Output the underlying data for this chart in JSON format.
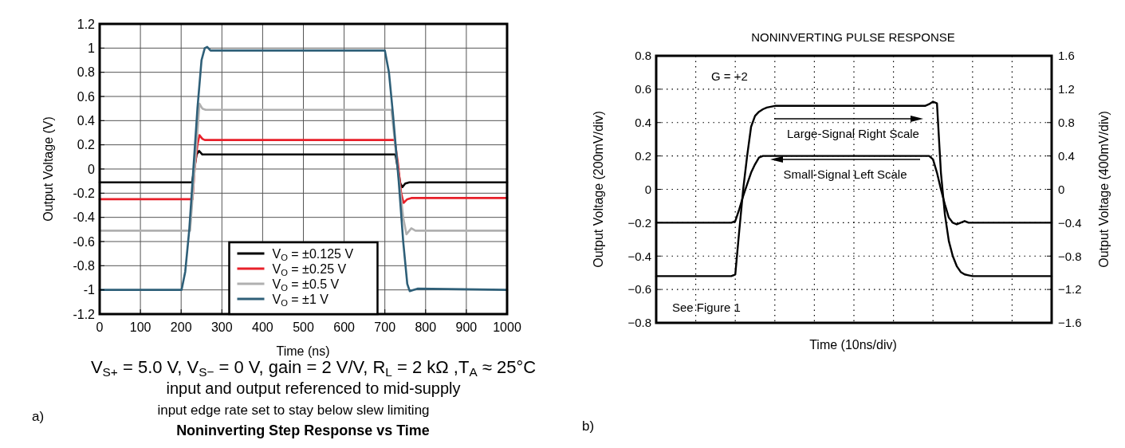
{
  "chart_data": [
    {
      "type": "line",
      "title": "Noninverting Step Response vs Time",
      "xlabel": "Time (ns)",
      "ylabel": "Output Voltage (V)",
      "annotations": [
        "V$_{S+}$ = 5.0 V, V$_{S−}$ = 0 V, gain = 2 V/V, R$_{L}$ = 2 kΩ ,T$_{A}$ ≈ 25°C",
        "input and output referenced to mid-supply",
        "input edge rate set to stay below slew limiting",
        "a)"
      ],
      "xlim": [
        0,
        1000
      ],
      "xticks": [
        0,
        100,
        200,
        300,
        400,
        500,
        600,
        700,
        800,
        900,
        1000
      ],
      "ylim": [
        -1.2,
        1.2
      ],
      "yticks": [
        -1.2,
        -1,
        -0.8,
        -0.6,
        -0.4,
        -0.2,
        0,
        0.2,
        0.4,
        0.6,
        0.8,
        1,
        1.2
      ],
      "grid": true,
      "legend": "bottom",
      "series": [
        {
          "name": "V$_{O}$ = ±0.125 V",
          "color": "#000000",
          "x": [
            0,
            227,
            232,
            238,
            244,
            252,
            258,
            726,
            732,
            738,
            743,
            750,
            760,
            1000
          ],
          "values": [
            -0.11,
            -0.11,
            0.0,
            0.12,
            0.15,
            0.12,
            0.12,
            0.12,
            0.0,
            -0.12,
            -0.15,
            -0.12,
            -0.11,
            -0.11
          ]
        },
        {
          "name": "V$_{O}$ = ±0.25 V",
          "color": "#e8202a",
          "x": [
            0,
            228,
            233,
            240,
            245,
            252,
            258,
            724,
            732,
            740,
            746,
            755,
            765,
            1000
          ],
          "values": [
            -0.25,
            -0.25,
            0.0,
            0.2,
            0.28,
            0.25,
            0.24,
            0.24,
            0.05,
            -0.2,
            -0.28,
            -0.25,
            -0.24,
            -0.24
          ]
        },
        {
          "name": "V$_{O}$ = ±0.5 V",
          "color": "#b0b0b0",
          "x": [
            0,
            222,
            245,
            252,
            260,
            716,
            745,
            753,
            765,
            775,
            1000
          ],
          "values": [
            -0.51,
            -0.51,
            0.54,
            0.5,
            0.49,
            0.49,
            -0.4,
            -0.54,
            -0.49,
            -0.51,
            -0.51
          ]
        },
        {
          "name": "V$_{O}$ = ±1 V",
          "color": "#2e5f78",
          "x": [
            0,
            201,
            210,
            220,
            228,
            240,
            250,
            258,
            264,
            272,
            700,
            710,
            720,
            734,
            745,
            755,
            761,
            770,
            780,
            1000
          ],
          "values": [
            -1,
            -1,
            -0.85,
            -0.5,
            -0.1,
            0.5,
            0.9,
            1.0,
            1.01,
            0.98,
            0.98,
            0.8,
            0.45,
            -0.1,
            -0.6,
            -0.95,
            -1.01,
            -1.0,
            -0.99,
            -1
          ]
        }
      ]
    },
    {
      "type": "line",
      "title": "NONINVERTING PULSE RESPONSE",
      "xlabel": "Time (10ns/div)",
      "ylabel": "Output Voltage (200mV/div)",
      "y2label": "Output Voltage (400mV/div)",
      "annotations": [
        "G = +2",
        "See Figure 1",
        "b)"
      ],
      "categories": [
        null,
        null,
        null,
        null,
        null,
        null,
        null,
        null,
        null,
        null,
        null,
        null,
        null,
        null,
        null,
        null,
        null,
        null,
        null,
        null,
        null,
        null,
        null,
        null,
        null,
        null,
        null,
        null,
        null,
        null,
        null,
        null,
        null,
        null,
        null,
        null,
        null,
        null,
        null,
        null,
        null,
        null,
        null,
        null,
        null,
        null,
        null,
        null,
        null,
        null,
        null,
        null,
        null,
        null,
        null,
        null,
        null,
        null,
        null,
        null,
        null,
        null,
        null,
        null,
        null,
        null,
        null,
        null,
        null,
        null,
        null,
        null,
        null,
        null,
        null,
        null,
        null,
        null,
        null,
        null,
        null,
        null,
        null,
        null,
        null,
        null,
        null,
        null,
        null,
        null,
        null,
        null,
        null,
        null,
        null,
        null,
        null,
        null,
        null,
        null,
        null
      ],
      "ylim": [
        -0.8,
        0.8
      ],
      "yticks": [
        {
          "value": -0.8,
          "label": "−0.8"
        },
        {
          "value": -0.6,
          "label": "−0.6"
        },
        {
          "value": -0.4,
          "label": "−0.4"
        },
        {
          "value": -0.2,
          "label": "−0.2"
        },
        0,
        0.2,
        0.4,
        0.6,
        0.8
      ],
      "y2lim": [
        -1.6,
        1.6
      ],
      "y2ticks": [
        {
          "value": -1.6,
          "label": "−1.6"
        },
        {
          "value": -1.2,
          "label": "−1.2"
        },
        {
          "value": -0.8,
          "label": "−0.8"
        },
        {
          "value": -0.4,
          "label": "−0.4"
        },
        0,
        0.4,
        0.8,
        1.2,
        1.6
      ],
      "grid": true,
      "legend": "top",
      "series": [
        {
          "name": "Large-Signal Right Scale",
          "color": "#000000",
          "axis": "y2",
          "values": [
            -1.04,
            -1.04,
            -1.04,
            -1.04,
            -1.04,
            -1.04,
            -1.04,
            -1.04,
            -1.04,
            -1.04,
            -1.04,
            -1.04,
            -1.04,
            -1.04,
            -1.04,
            -1.04,
            -1.04,
            -1.04,
            -1.04,
            -1.04,
            -1.02,
            -0.5,
            0.0,
            0.4,
            0.75,
            0.88,
            0.93,
            0.96,
            0.98,
            0.99,
            1.0,
            1.0,
            1.0,
            1.0,
            1.0,
            1.0,
            1.0,
            1.0,
            1.0,
            1.0,
            1.0,
            1.0,
            1.0,
            1.0,
            1.0,
            1.0,
            1.0,
            1.0,
            1.0,
            1.0,
            1.0,
            1.0,
            1.0,
            1.0,
            1.0,
            1.0,
            1.0,
            1.0,
            1.0,
            1.0,
            1.0,
            1.0,
            1.0,
            1.0,
            1.0,
            1.0,
            1.0,
            1.0,
            1.0,
            1.02,
            1.05,
            1.03,
            0.2,
            -0.3,
            -0.62,
            -0.8,
            -0.92,
            -0.99,
            -1.02,
            -1.03,
            -1.04,
            -1.04,
            -1.04,
            -1.04,
            -1.04,
            -1.04,
            -1.04,
            -1.04,
            -1.04,
            -1.04,
            -1.04,
            -1.04,
            -1.04,
            -1.04,
            -1.04,
            -1.04,
            -1.04,
            -1.04,
            -1.04,
            -1.04,
            -1.04
          ]
        },
        {
          "name": "Small-Signal Left Scale",
          "color": "#000000",
          "values": [
            -0.2,
            -0.2,
            -0.2,
            -0.2,
            -0.2,
            -0.2,
            -0.2,
            -0.2,
            -0.2,
            -0.2,
            -0.2,
            -0.2,
            -0.2,
            -0.2,
            -0.2,
            -0.2,
            -0.2,
            -0.2,
            -0.2,
            -0.2,
            -0.19,
            -0.12,
            -0.04,
            0.03,
            0.1,
            0.15,
            0.19,
            0.2,
            0.2,
            0.2,
            0.2,
            0.2,
            0.2,
            0.2,
            0.2,
            0.2,
            0.2,
            0.2,
            0.2,
            0.2,
            0.2,
            0.2,
            0.2,
            0.2,
            0.2,
            0.2,
            0.2,
            0.2,
            0.2,
            0.2,
            0.2,
            0.2,
            0.2,
            0.2,
            0.2,
            0.2,
            0.2,
            0.2,
            0.2,
            0.2,
            0.2,
            0.2,
            0.2,
            0.2,
            0.2,
            0.2,
            0.2,
            0.2,
            0.2,
            0.2,
            0.18,
            0.1,
            0.0,
            -0.09,
            -0.17,
            -0.2,
            -0.21,
            -0.2,
            -0.19,
            -0.2,
            -0.2,
            -0.2,
            -0.2,
            -0.2,
            -0.2,
            -0.2,
            -0.2,
            -0.2,
            -0.2,
            -0.2,
            -0.2,
            -0.2,
            -0.2,
            -0.2,
            -0.2,
            -0.2,
            -0.2,
            -0.2,
            -0.2,
            -0.2,
            -0.2
          ]
        }
      ]
    }
  ]
}
